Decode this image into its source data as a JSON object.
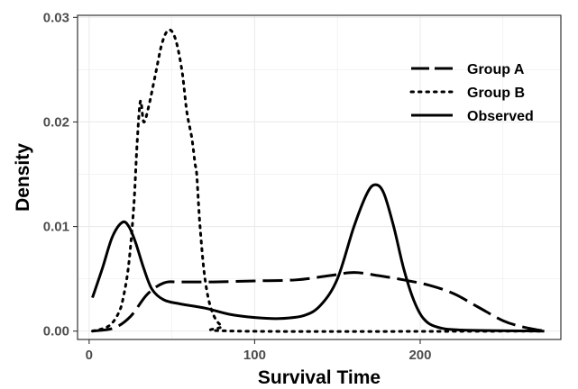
{
  "chart_data": {
    "type": "line",
    "title": "",
    "xlabel": "Survival Time",
    "ylabel": "Density",
    "xlim": [
      -7,
      285
    ],
    "ylim": [
      -0.0008,
      0.0302
    ],
    "x_ticks": [
      0,
      100,
      200
    ],
    "x_tick_labels": [
      "0",
      "100",
      "200"
    ],
    "y_ticks": [
      0.0,
      0.01,
      0.02,
      0.03
    ],
    "y_tick_labels": [
      "0.00",
      "0.01",
      "0.02",
      "0.03"
    ],
    "grid": true,
    "legend": {
      "placement": "top-right"
    },
    "series": [
      {
        "name": "Group A",
        "style": "dashed",
        "color": "#000000",
        "points": [
          [
            2,
            0.0
          ],
          [
            15,
            0.0003
          ],
          [
            25,
            0.0014
          ],
          [
            35,
            0.0035
          ],
          [
            45,
            0.0046
          ],
          [
            55,
            0.0047
          ],
          [
            75,
            0.0047
          ],
          [
            100,
            0.0048
          ],
          [
            125,
            0.0049
          ],
          [
            145,
            0.0053
          ],
          [
            160,
            0.0056
          ],
          [
            175,
            0.0053
          ],
          [
            190,
            0.0049
          ],
          [
            205,
            0.0044
          ],
          [
            220,
            0.0036
          ],
          [
            235,
            0.0023
          ],
          [
            250,
            0.001
          ],
          [
            262,
            0.0004
          ],
          [
            275,
            0.0
          ]
        ]
      },
      {
        "name": "Group B",
        "style": "dotted",
        "color": "#000000",
        "points": [
          [
            2,
            0.0
          ],
          [
            12,
            0.0005
          ],
          [
            18,
            0.0018
          ],
          [
            21,
            0.0035
          ],
          [
            24,
            0.0065
          ],
          [
            27,
            0.012
          ],
          [
            29,
            0.018
          ],
          [
            31,
            0.022
          ],
          [
            33,
            0.02
          ],
          [
            36,
            0.0215
          ],
          [
            40,
            0.0245
          ],
          [
            44,
            0.0275
          ],
          [
            48,
            0.0288
          ],
          [
            52,
            0.028
          ],
          [
            56,
            0.025
          ],
          [
            59,
            0.021
          ],
          [
            62,
            0.0185
          ],
          [
            64,
            0.016
          ],
          [
            65,
            0.015
          ],
          [
            67,
            0.01
          ],
          [
            70,
            0.005
          ],
          [
            74,
            0.002
          ],
          [
            80,
            0.0005
          ],
          [
            90,
            0.0
          ],
          [
            275,
            0.0
          ]
        ]
      },
      {
        "name": "Observed",
        "style": "solid",
        "color": "#000000",
        "points": [
          [
            2,
            0.0032
          ],
          [
            8,
            0.006
          ],
          [
            14,
            0.009
          ],
          [
            20,
            0.0104
          ],
          [
            24,
            0.01
          ],
          [
            28,
            0.0085
          ],
          [
            33,
            0.006
          ],
          [
            38,
            0.004
          ],
          [
            45,
            0.003
          ],
          [
            55,
            0.0026
          ],
          [
            70,
            0.0022
          ],
          [
            85,
            0.0016
          ],
          [
            100,
            0.0013
          ],
          [
            115,
            0.0012
          ],
          [
            130,
            0.0015
          ],
          [
            140,
            0.0025
          ],
          [
            150,
            0.005
          ],
          [
            160,
            0.01
          ],
          [
            168,
            0.0132
          ],
          [
            173,
            0.014
          ],
          [
            178,
            0.0132
          ],
          [
            184,
            0.01
          ],
          [
            190,
            0.006
          ],
          [
            196,
            0.003
          ],
          [
            202,
            0.0012
          ],
          [
            210,
            0.0004
          ],
          [
            225,
            0.0001
          ],
          [
            275,
            0.0
          ]
        ]
      }
    ]
  }
}
